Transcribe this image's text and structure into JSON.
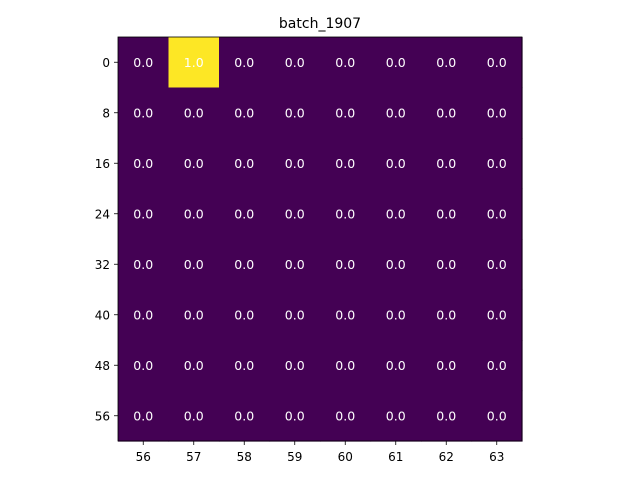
{
  "chart_data": {
    "type": "heatmap",
    "title": "batch_1907",
    "xlabel": "",
    "ylabel": "",
    "x_categories": [
      "56",
      "57",
      "58",
      "59",
      "60",
      "61",
      "62",
      "63"
    ],
    "y_categories": [
      "0",
      "8",
      "16",
      "24",
      "32",
      "40",
      "48",
      "56"
    ],
    "values": [
      [
        0.0,
        1.0,
        0.0,
        0.0,
        0.0,
        0.0,
        0.0,
        0.0
      ],
      [
        0.0,
        0.0,
        0.0,
        0.0,
        0.0,
        0.0,
        0.0,
        0.0
      ],
      [
        0.0,
        0.0,
        0.0,
        0.0,
        0.0,
        0.0,
        0.0,
        0.0
      ],
      [
        0.0,
        0.0,
        0.0,
        0.0,
        0.0,
        0.0,
        0.0,
        0.0
      ],
      [
        0.0,
        0.0,
        0.0,
        0.0,
        0.0,
        0.0,
        0.0,
        0.0
      ],
      [
        0.0,
        0.0,
        0.0,
        0.0,
        0.0,
        0.0,
        0.0,
        0.0
      ],
      [
        0.0,
        0.0,
        0.0,
        0.0,
        0.0,
        0.0,
        0.0,
        0.0
      ],
      [
        0.0,
        0.0,
        0.0,
        0.0,
        0.0,
        0.0,
        0.0,
        0.0
      ]
    ],
    "value_range": [
      0.0,
      1.0
    ],
    "colormap": {
      "low": "#440154",
      "high": "#fde725"
    },
    "cell_label_color": "#ffffff",
    "grid": false,
    "legend": "none"
  }
}
